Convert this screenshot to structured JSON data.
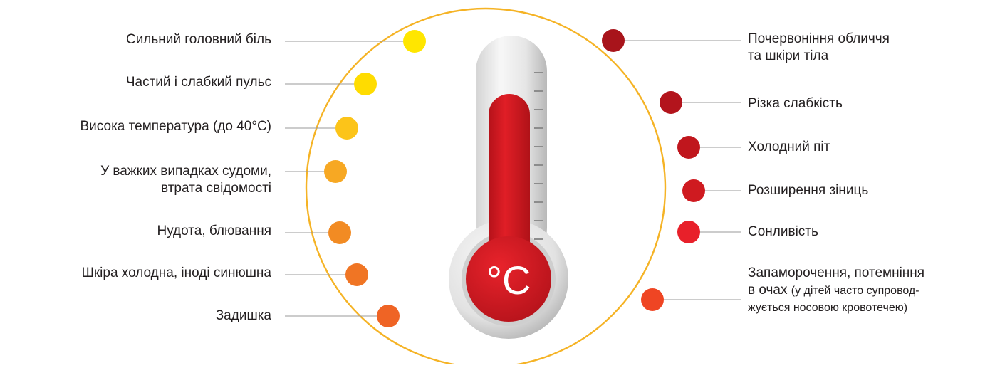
{
  "thermometer": {
    "unit_label": "°C",
    "colors": {
      "tube_fill": "#d81920",
      "bulb_fill": "#d81920",
      "glass_light": "#f2f2f2",
      "glass_dark": "#bdbdbd"
    }
  },
  "ring_color": "#f5b325",
  "connector_color": "#9a9a9a",
  "left_symptoms": [
    {
      "lines": [
        "Сильний головний біль"
      ],
      "dot_color": "#ffe600"
    },
    {
      "lines": [
        "Частий і слабкий пульс"
      ],
      "dot_color": "#ffdc00"
    },
    {
      "lines": [
        "Висока температура (до 40°C)"
      ],
      "dot_color": "#fcc419"
    },
    {
      "lines": [
        "У важких випадках судоми,",
        "втрата свідомості"
      ],
      "dot_color": "#f7a823"
    },
    {
      "lines": [
        "Нудота, блювання"
      ],
      "dot_color": "#f28b23"
    },
    {
      "lines": [
        "Шкіра холодна, іноді синюшна"
      ],
      "dot_color": "#f07524"
    },
    {
      "lines": [
        "Задишка"
      ],
      "dot_color": "#ef6425"
    }
  ],
  "right_symptoms": [
    {
      "lines": [
        "Почервоніння обличчя",
        "та шкіри тіла"
      ],
      "dot_color": "#a8141b"
    },
    {
      "lines": [
        "Різка слабкість"
      ],
      "dot_color": "#b3141c"
    },
    {
      "lines": [
        "Холодний піт"
      ],
      "dot_color": "#c0161d"
    },
    {
      "lines": [
        "Розширення зіниць"
      ],
      "dot_color": "#cf1a20"
    },
    {
      "lines": [
        "Сонливість"
      ],
      "dot_color": "#e8202a"
    },
    {
      "lines": [
        "Запаморочення, потемніння",
        "в очах",
        "(у дітей часто супровод-",
        "жується носовою кровотечею)"
      ],
      "dot_color": "#ef4523"
    }
  ]
}
